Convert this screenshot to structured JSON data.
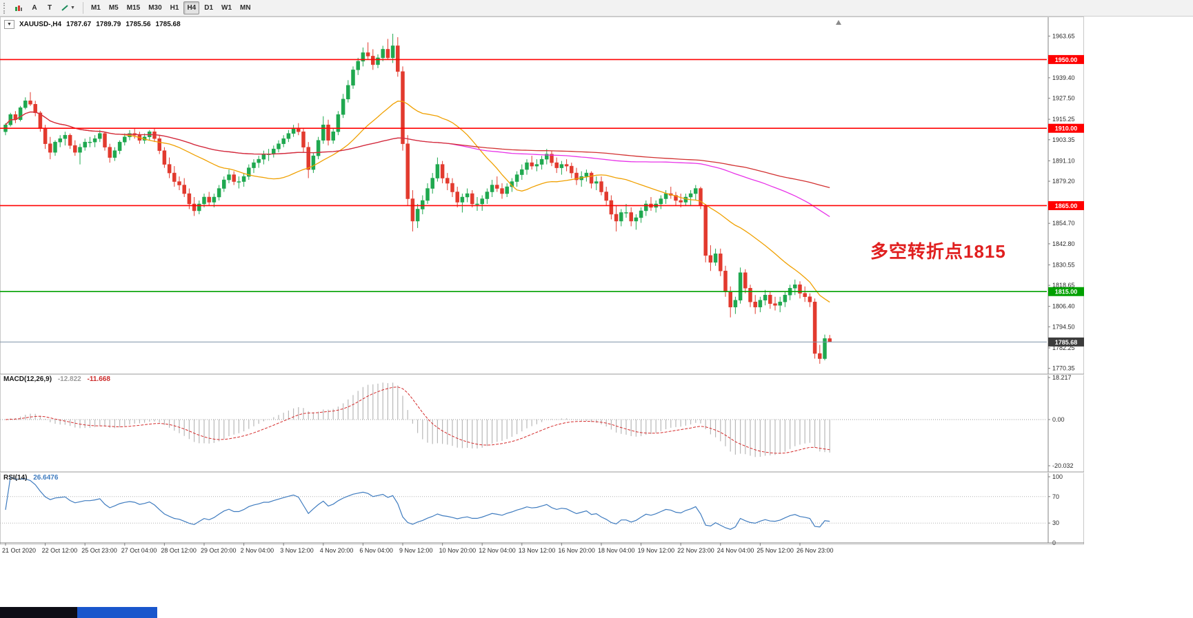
{
  "toolbar": {
    "tool_a": "A",
    "tool_t": "T",
    "timeframes": [
      "M1",
      "M5",
      "M15",
      "M30",
      "H1",
      "H4",
      "D1",
      "W1",
      "MN"
    ],
    "active_timeframe": "H4"
  },
  "chart_header": {
    "symbol": "XAUUSD-,H4",
    "open": "1787.67",
    "high": "1789.79",
    "low": "1785.56",
    "close": "1785.68"
  },
  "annotation": {
    "text": "多空转折点1815",
    "color": "#e01f1f"
  },
  "taskbar": {
    "segments": [
      "dark",
      "blue"
    ]
  },
  "chart_data": {
    "type": "candlestick",
    "symbol": "XAUUSD",
    "timeframe": "H4",
    "current_price": 1785.68,
    "current_price_label": "1785.68",
    "colors": {
      "up": "#1fa84f",
      "down": "#e23a2e",
      "bid_line": "#7e93a8",
      "current_badge_bg": "#3c3c3c",
      "axis_text": "#2b2b2b"
    },
    "hlines": [
      {
        "price": 1950.0,
        "label": "1950.00",
        "color": "#ff0000"
      },
      {
        "price": 1910.0,
        "label": "1910.00",
        "color": "#ff0000"
      },
      {
        "price": 1865.0,
        "label": "1865.00",
        "color": "#ff0000"
      },
      {
        "price": 1815.0,
        "label": "1815.00",
        "color": "#00a000"
      }
    ],
    "moving_averages": [
      {
        "name": "fast",
        "period": 24,
        "color": "#f0a000"
      },
      {
        "name": "medium",
        "period": 90,
        "color": "#e832e8"
      },
      {
        "name": "slow",
        "period": 150,
        "color": "#d23030"
      }
    ],
    "price_axis_ticks": [
      "1963.65",
      "1939.40",
      "1927.50",
      "1915.25",
      "1903.35",
      "1891.10",
      "1879.20",
      "1854.70",
      "1842.80",
      "1830.55",
      "1818.65",
      "1806.40",
      "1794.50",
      "1782.25",
      "1770.35"
    ],
    "time_axis": {
      "candles_per_label": 8,
      "labels": [
        "21 Oct 2020",
        "22 Oct 12:00",
        "25 Oct 23:00",
        "27 Oct 04:00",
        "28 Oct 12:00",
        "29 Oct 20:00",
        "2 Nov 04:00",
        "3 Nov 12:00",
        "4 Nov 20:00",
        "6 Nov 04:00",
        "9 Nov 12:00",
        "10 Nov 20:00",
        "12 Nov 04:00",
        "13 Nov 12:00",
        "16 Nov 20:00",
        "18 Nov 04:00",
        "19 Nov 12:00",
        "22 Nov 23:00",
        "24 Nov 04:00",
        "25 Nov 12:00",
        "26 Nov 23:00"
      ]
    },
    "indicators": {
      "macd": {
        "label": "MACD(12,26,9)",
        "fast": 12,
        "slow": 26,
        "signal": 9,
        "value": "-12.822",
        "signal_value": "-11.668",
        "axis_max": 18.217,
        "axis_min": -20.032,
        "axis_ticks": [
          "18.217",
          "0.00",
          "-20.032"
        ],
        "histogram_color": "#b8b8b8",
        "signal_color": "#d42a2a"
      },
      "rsi": {
        "label": "RSI(14)",
        "period": 14,
        "value": "26.6476",
        "levels": [
          70,
          30
        ],
        "axis_ticks": [
          "100",
          "70",
          "30",
          "0"
        ],
        "line_color": "#3e7bbf"
      }
    },
    "candles_ohlc": [
      [
        1908,
        1913,
        1906,
        1912
      ],
      [
        1912,
        1919,
        1911,
        1918
      ],
      [
        1918,
        1920,
        1913,
        1915
      ],
      [
        1915,
        1923,
        1914,
        1922
      ],
      [
        1922,
        1928,
        1921,
        1926
      ],
      [
        1926,
        1931,
        1923,
        1924
      ],
      [
        1924,
        1926,
        1917,
        1919
      ],
      [
        1919,
        1920,
        1908,
        1910
      ],
      [
        1910,
        1912,
        1898,
        1901
      ],
      [
        1901,
        1905,
        1892,
        1896
      ],
      [
        1896,
        1903,
        1894,
        1902
      ],
      [
        1902,
        1906,
        1899,
        1904
      ],
      [
        1904,
        1908,
        1900,
        1906
      ],
      [
        1906,
        1907,
        1898,
        1900
      ],
      [
        1900,
        1903,
        1894,
        1896
      ],
      [
        1896,
        1901,
        1889,
        1899
      ],
      [
        1899,
        1904,
        1897,
        1902
      ],
      [
        1902,
        1905,
        1899,
        1902
      ],
      [
        1902,
        1906,
        1899,
        1904
      ],
      [
        1904,
        1909,
        1902,
        1907
      ],
      [
        1907,
        1908,
        1897,
        1899
      ],
      [
        1899,
        1901,
        1890,
        1893
      ],
      [
        1893,
        1899,
        1891,
        1897
      ],
      [
        1897,
        1903,
        1895,
        1902
      ],
      [
        1902,
        1907,
        1900,
        1905
      ],
      [
        1905,
        1909,
        1903,
        1907
      ],
      [
        1907,
        1910,
        1904,
        1906
      ],
      [
        1906,
        1908,
        1901,
        1903
      ],
      [
        1903,
        1907,
        1901,
        1905
      ],
      [
        1905,
        1909,
        1903,
        1908
      ],
      [
        1908,
        1910,
        1902,
        1904
      ],
      [
        1904,
        1906,
        1895,
        1897
      ],
      [
        1897,
        1899,
        1887,
        1889
      ],
      [
        1889,
        1893,
        1881,
        1884
      ],
      [
        1884,
        1888,
        1876,
        1879
      ],
      [
        1879,
        1882,
        1874,
        1877
      ],
      [
        1877,
        1881,
        1870,
        1872
      ],
      [
        1872,
        1875,
        1863,
        1866
      ],
      [
        1866,
        1870,
        1859,
        1862
      ],
      [
        1862,
        1868,
        1860,
        1866
      ],
      [
        1866,
        1872,
        1864,
        1870
      ],
      [
        1870,
        1873,
        1865,
        1867
      ],
      [
        1867,
        1872,
        1864,
        1870
      ],
      [
        1870,
        1877,
        1868,
        1875
      ],
      [
        1875,
        1882,
        1873,
        1880
      ],
      [
        1880,
        1886,
        1878,
        1883
      ],
      [
        1883,
        1885,
        1877,
        1879
      ],
      [
        1879,
        1882,
        1875,
        1879
      ],
      [
        1879,
        1884,
        1876,
        1882
      ],
      [
        1882,
        1889,
        1880,
        1887
      ],
      [
        1887,
        1892,
        1884,
        1890
      ],
      [
        1890,
        1894,
        1887,
        1892
      ],
      [
        1892,
        1897,
        1889,
        1895
      ],
      [
        1895,
        1898,
        1891,
        1895
      ],
      [
        1895,
        1900,
        1893,
        1898
      ],
      [
        1898,
        1903,
        1896,
        1901
      ],
      [
        1901,
        1906,
        1899,
        1904
      ],
      [
        1904,
        1909,
        1902,
        1907
      ],
      [
        1907,
        1912,
        1905,
        1910
      ],
      [
        1910,
        1913,
        1906,
        1908
      ],
      [
        1908,
        1910,
        1896,
        1899
      ],
      [
        1899,
        1902,
        1881,
        1886
      ],
      [
        1886,
        1896,
        1884,
        1894
      ],
      [
        1894,
        1905,
        1892,
        1903
      ],
      [
        1903,
        1917,
        1901,
        1912
      ],
      [
        1912,
        1915,
        1900,
        1903
      ],
      [
        1903,
        1910,
        1901,
        1908
      ],
      [
        1908,
        1920,
        1906,
        1918
      ],
      [
        1918,
        1930,
        1916,
        1927
      ],
      [
        1927,
        1938,
        1925,
        1935
      ],
      [
        1935,
        1946,
        1933,
        1944
      ],
      [
        1944,
        1951,
        1941,
        1949
      ],
      [
        1949,
        1957,
        1946,
        1954
      ],
      [
        1954,
        1960,
        1950,
        1952
      ],
      [
        1952,
        1956,
        1944,
        1947
      ],
      [
        1947,
        1953,
        1945,
        1951
      ],
      [
        1951,
        1958,
        1949,
        1956
      ],
      [
        1956,
        1962,
        1950,
        1951
      ],
      [
        1951,
        1965,
        1948,
        1958
      ],
      [
        1958,
        1963,
        1940,
        1943
      ],
      [
        1943,
        1946,
        1897,
        1901
      ],
      [
        1901,
        1906,
        1865,
        1869
      ],
      [
        1869,
        1874,
        1850,
        1856
      ],
      [
        1856,
        1866,
        1852,
        1863
      ],
      [
        1863,
        1871,
        1860,
        1868
      ],
      [
        1868,
        1878,
        1866,
        1875
      ],
      [
        1875,
        1884,
        1872,
        1881
      ],
      [
        1881,
        1893,
        1879,
        1889
      ],
      [
        1889,
        1891,
        1878,
        1881
      ],
      [
        1881,
        1884,
        1874,
        1878
      ],
      [
        1878,
        1881,
        1870,
        1873
      ],
      [
        1873,
        1876,
        1864,
        1867
      ],
      [
        1867,
        1872,
        1861,
        1870
      ],
      [
        1870,
        1875,
        1867,
        1872
      ],
      [
        1872,
        1874,
        1864,
        1866
      ],
      [
        1866,
        1870,
        1862,
        1866
      ],
      [
        1866,
        1871,
        1862,
        1869
      ],
      [
        1869,
        1875,
        1866,
        1873
      ],
      [
        1873,
        1880,
        1870,
        1877
      ],
      [
        1877,
        1882,
        1873,
        1875
      ],
      [
        1875,
        1878,
        1869,
        1872
      ],
      [
        1872,
        1878,
        1870,
        1876
      ],
      [
        1876,
        1881,
        1873,
        1879
      ],
      [
        1879,
        1885,
        1876,
        1883
      ],
      [
        1883,
        1889,
        1880,
        1886
      ],
      [
        1886,
        1892,
        1883,
        1890
      ],
      [
        1890,
        1894,
        1886,
        1888
      ],
      [
        1888,
        1892,
        1885,
        1889
      ],
      [
        1889,
        1894,
        1886,
        1892
      ],
      [
        1892,
        1898,
        1889,
        1895
      ],
      [
        1895,
        1897,
        1888,
        1890
      ],
      [
        1890,
        1893,
        1884,
        1887
      ],
      [
        1887,
        1891,
        1883,
        1889
      ],
      [
        1889,
        1892,
        1885,
        1888
      ],
      [
        1888,
        1890,
        1881,
        1884
      ],
      [
        1884,
        1887,
        1877,
        1880
      ],
      [
        1880,
        1885,
        1876,
        1882
      ],
      [
        1882,
        1886,
        1879,
        1884
      ],
      [
        1884,
        1885,
        1875,
        1878
      ],
      [
        1878,
        1882,
        1874,
        1879
      ],
      [
        1879,
        1882,
        1871,
        1873
      ],
      [
        1873,
        1876,
        1865,
        1868
      ],
      [
        1868,
        1871,
        1857,
        1860
      ],
      [
        1860,
        1865,
        1850,
        1856
      ],
      [
        1856,
        1863,
        1853,
        1861
      ],
      [
        1861,
        1866,
        1858,
        1861
      ],
      [
        1861,
        1864,
        1853,
        1856
      ],
      [
        1856,
        1860,
        1851,
        1858
      ],
      [
        1858,
        1864,
        1855,
        1862
      ],
      [
        1862,
        1868,
        1859,
        1866
      ],
      [
        1866,
        1870,
        1862,
        1864
      ],
      [
        1864,
        1868,
        1861,
        1866
      ],
      [
        1866,
        1871,
        1863,
        1869
      ],
      [
        1869,
        1874,
        1866,
        1872
      ],
      [
        1872,
        1876,
        1869,
        1871
      ],
      [
        1871,
        1873,
        1865,
        1868
      ],
      [
        1868,
        1872,
        1864,
        1867
      ],
      [
        1867,
        1872,
        1865,
        1870
      ],
      [
        1870,
        1874,
        1865,
        1872
      ],
      [
        1872,
        1877,
        1868,
        1875
      ],
      [
        1875,
        1876,
        1863,
        1865
      ],
      [
        1865,
        1866,
        1832,
        1836
      ],
      [
        1836,
        1842,
        1827,
        1832
      ],
      [
        1832,
        1840,
        1830,
        1837
      ],
      [
        1837,
        1840,
        1824,
        1827
      ],
      [
        1827,
        1830,
        1812,
        1815
      ],
      [
        1815,
        1818,
        1800,
        1806
      ],
      [
        1806,
        1812,
        1802,
        1810
      ],
      [
        1810,
        1829,
        1808,
        1826
      ],
      [
        1826,
        1828,
        1814,
        1817
      ],
      [
        1817,
        1819,
        1806,
        1809
      ],
      [
        1809,
        1813,
        1802,
        1806
      ],
      [
        1806,
        1812,
        1803,
        1810
      ],
      [
        1810,
        1816,
        1807,
        1813
      ],
      [
        1813,
        1815,
        1805,
        1808
      ],
      [
        1808,
        1812,
        1804,
        1807
      ],
      [
        1807,
        1812,
        1803,
        1809
      ],
      [
        1809,
        1815,
        1806,
        1813
      ],
      [
        1813,
        1819,
        1810,
        1817
      ],
      [
        1817,
        1822,
        1813,
        1819
      ],
      [
        1819,
        1821,
        1811,
        1814
      ],
      [
        1814,
        1818,
        1809,
        1812
      ],
      [
        1812,
        1814,
        1806,
        1809
      ],
      [
        1809,
        1811,
        1776,
        1779
      ],
      [
        1779,
        1784,
        1773,
        1776
      ],
      [
        1776,
        1790,
        1775,
        1787.7
      ],
      [
        1787.67,
        1789.79,
        1785.56,
        1785.68
      ]
    ]
  }
}
